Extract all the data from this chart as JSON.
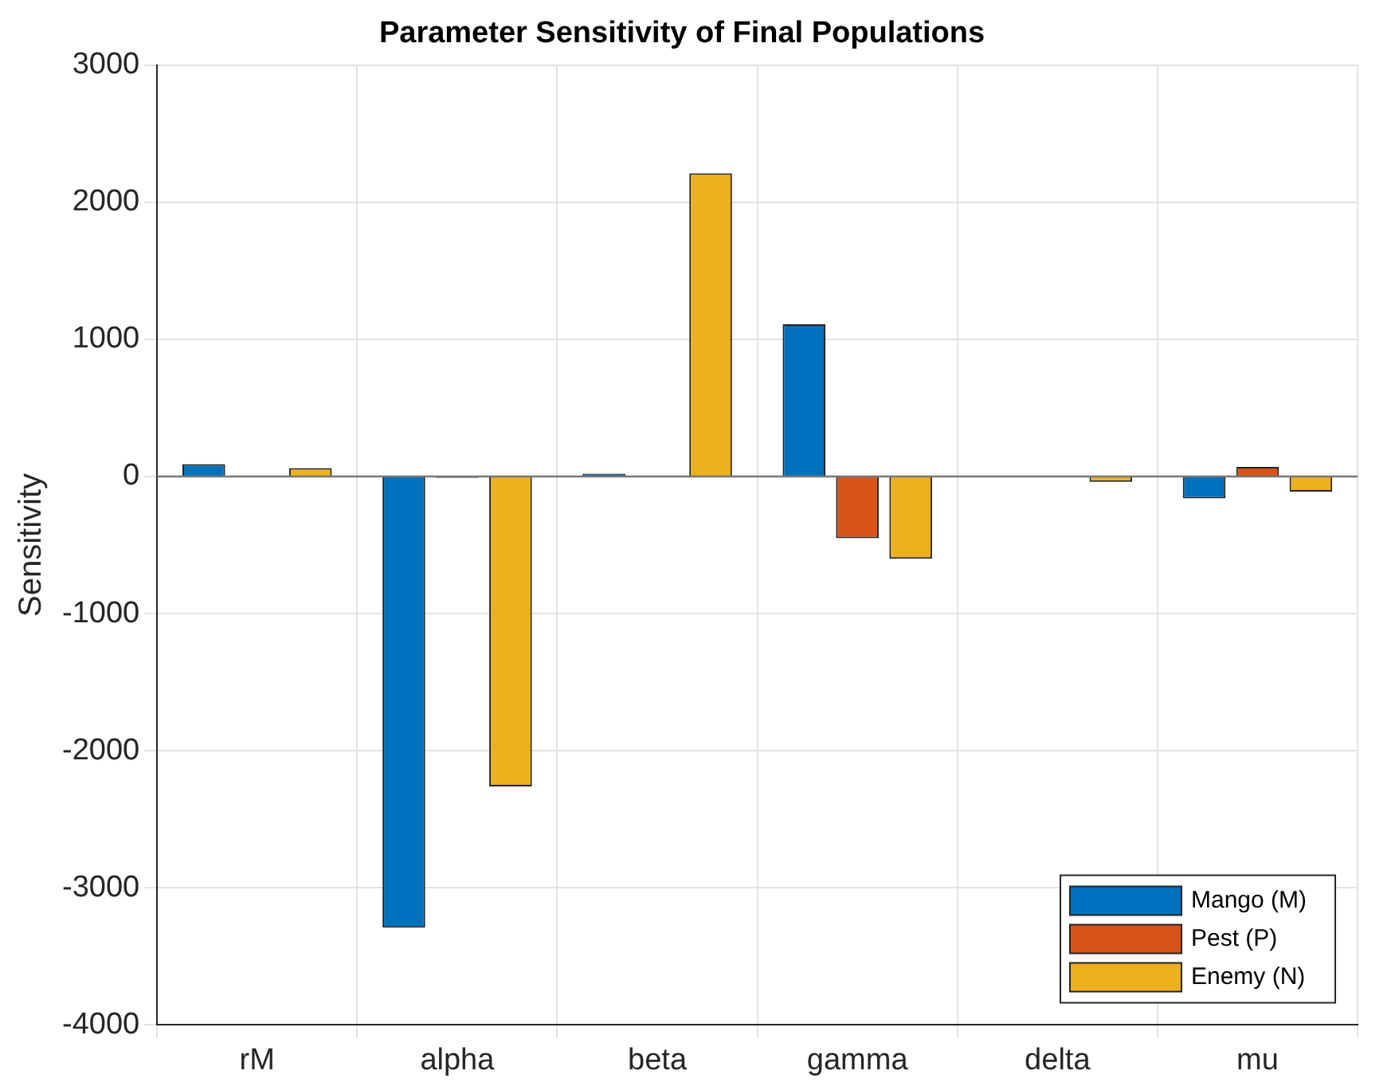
{
  "chart_data": {
    "type": "bar",
    "title": "Parameter Sensitivity of Final Populations",
    "ylabel": "Sensitivity",
    "categories": [
      "rM",
      "alpha",
      "beta",
      "gamma",
      "delta",
      "mu"
    ],
    "series": [
      {
        "name": "Mango (M)",
        "color": "#0072bd",
        "values": [
          90,
          -3290,
          20,
          1110,
          0,
          -160
        ]
      },
      {
        "name": "Pest (P)",
        "color": "#d95319",
        "values": [
          0,
          -10,
          0,
          -450,
          0,
          70
        ]
      },
      {
        "name": "Enemy (N)",
        "color": "#edb120",
        "values": [
          60,
          -2260,
          2210,
          -600,
          -40,
          -110
        ]
      }
    ],
    "ylim": [
      -4000,
      3000
    ],
    "yticks": [
      -4000,
      -3000,
      -2000,
      -1000,
      0,
      1000,
      2000,
      3000
    ],
    "grid": true,
    "legend": "bottom right"
  }
}
